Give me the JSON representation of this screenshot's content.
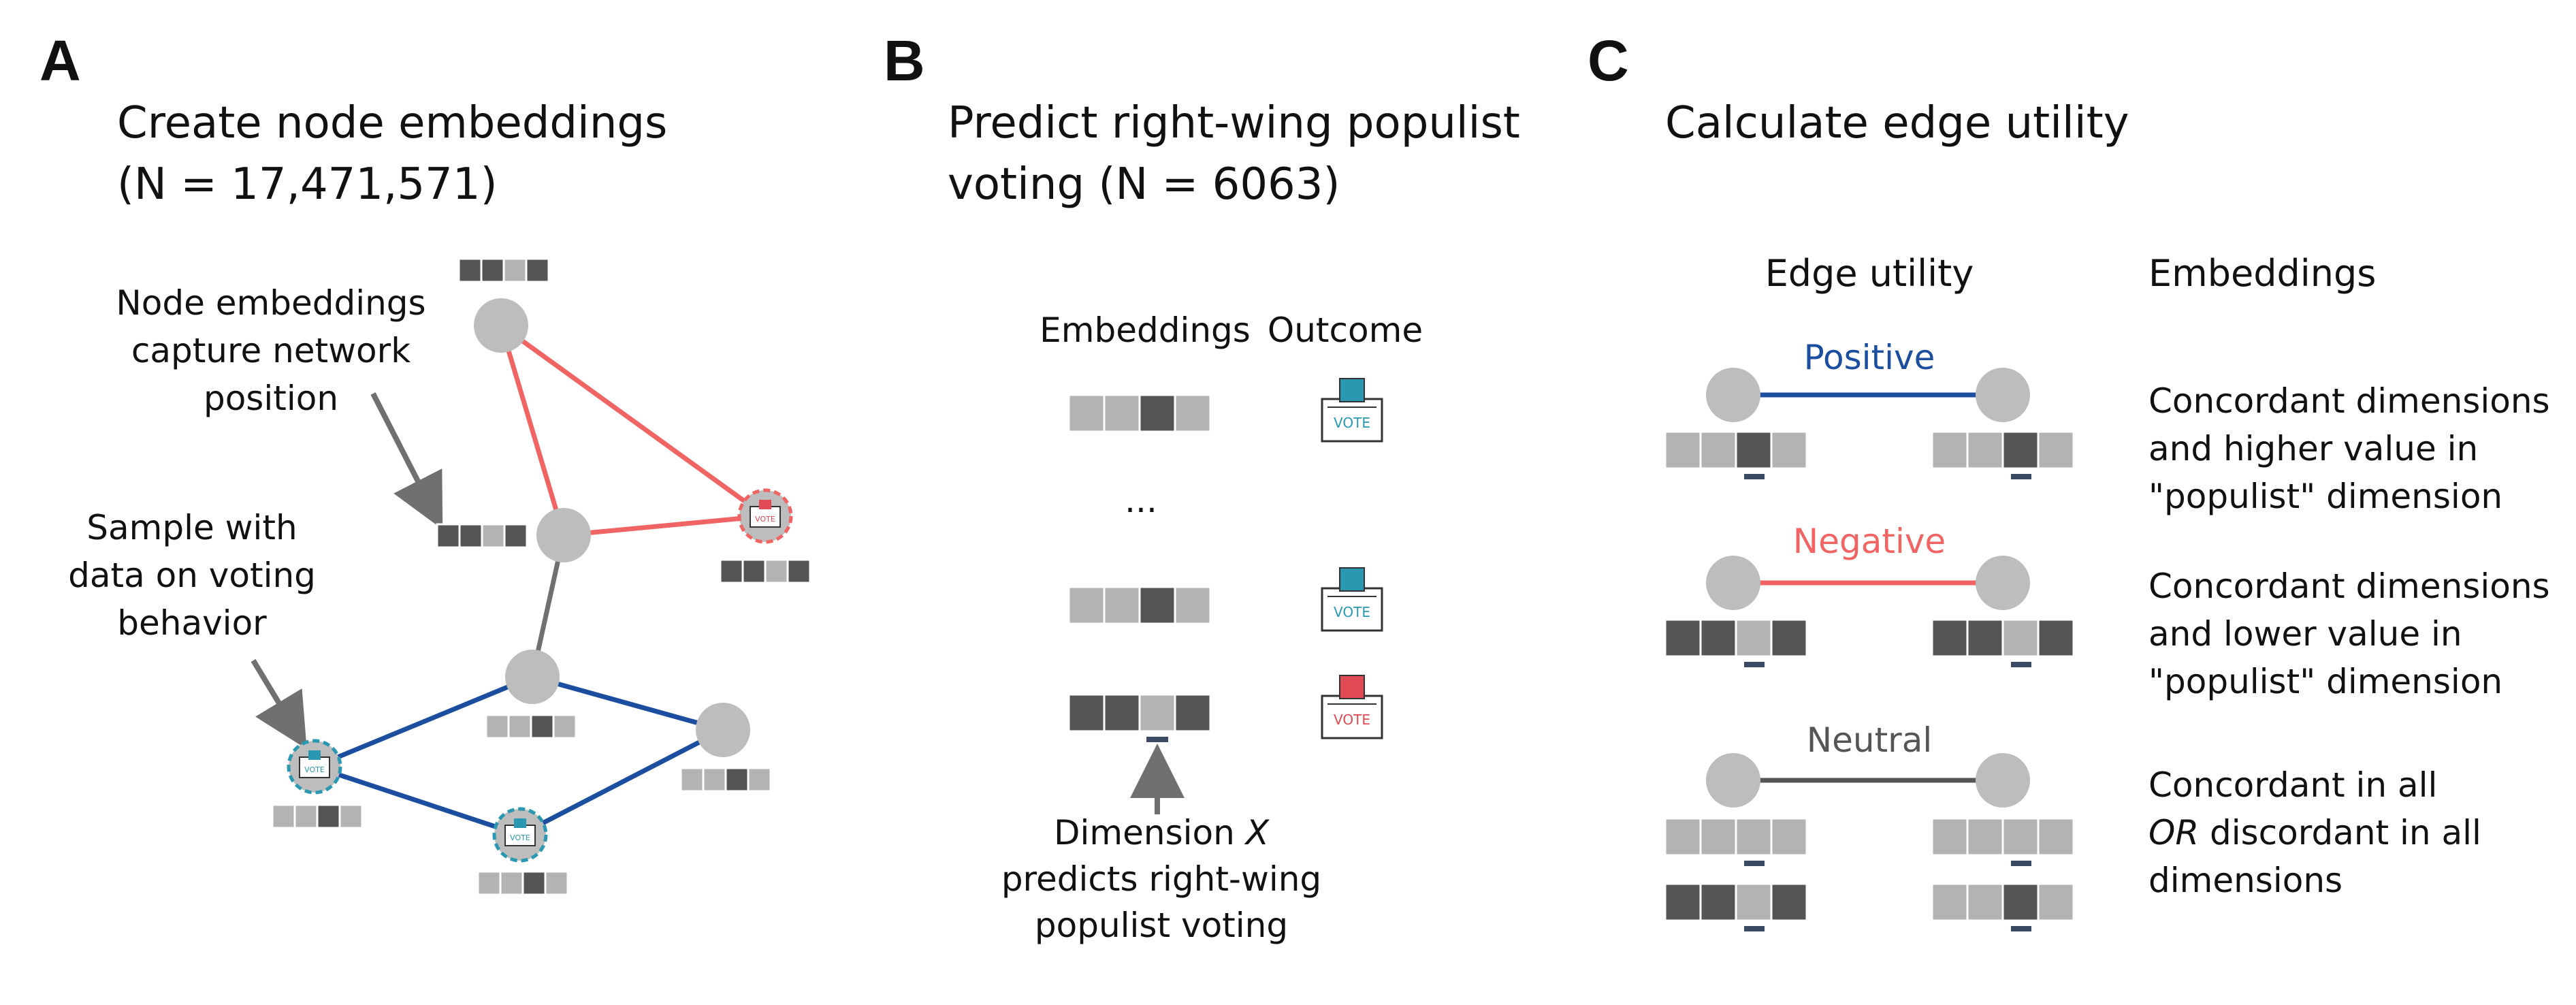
{
  "colors": {
    "positive_edge": "#1c4ea0",
    "negative_edge": "#f06464",
    "neutral_edge": "#555555",
    "node_fill": "#bdbdbd",
    "cell_dark": "#555555",
    "cell_light": "#b3b3b3",
    "vote_box_teal": "#2a98b0",
    "vote_box_red": "#e04a52",
    "arrow_gray": "#707070"
  },
  "panel_a": {
    "letter": "A",
    "title_line1": "Create node embeddings",
    "title_line2": "(N = 17,471,571)",
    "callout_embeddings": [
      "Node embeddings",
      "capture network",
      "position"
    ],
    "callout_sample": [
      "Sample with",
      "data on voting",
      "behavior"
    ],
    "ballot_text": "VOTE"
  },
  "panel_b": {
    "letter": "B",
    "title_line1": "Predict right-wing populist",
    "title_line2": "voting (N = 6063)",
    "col_embeddings": "Embeddings",
    "col_outcome": "Outcome",
    "ellipsis": "...",
    "dimension_note": {
      "prefix": "Dimension ",
      "variable": "X",
      "line2": "predicts right-wing",
      "line3": "populist voting"
    },
    "ballot_text": "VOTE"
  },
  "panel_c": {
    "letter": "C",
    "title": "Calculate edge utility",
    "col_utility": "Edge utility",
    "col_embeddings": "Embeddings",
    "positive_label": "Positive",
    "negative_label": "Negative",
    "neutral_label": "Neutral",
    "positive_desc": [
      "Concordant dimensions",
      "and higher value in",
      "\"populist\" dimension"
    ],
    "negative_desc": [
      "Concordant dimensions",
      "and lower value in",
      "\"populist\" dimension"
    ],
    "neutral_desc": {
      "line1": "Concordant in all",
      "line2_em": "OR",
      "line2_rest": " discordant in all",
      "line3": "dimensions"
    }
  }
}
